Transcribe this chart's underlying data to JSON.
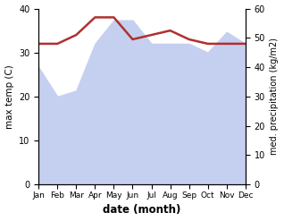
{
  "months": [
    "Jan",
    "Feb",
    "Mar",
    "Apr",
    "May",
    "Jun",
    "Jul",
    "Aug",
    "Sep",
    "Oct",
    "Nov",
    "Dec"
  ],
  "temperature": [
    32,
    32,
    34,
    38,
    38,
    33,
    34,
    35,
    33,
    32,
    32,
    32
  ],
  "precipitation": [
    40,
    30,
    32,
    48,
    56,
    56,
    48,
    48,
    48,
    45,
    52,
    48
  ],
  "temp_color": "#b03030",
  "precip_fill_color": "#c5d0f0",
  "xlabel": "date (month)",
  "ylabel_left": "max temp (C)",
  "ylabel_right": "med. precipitation (kg/m2)",
  "ylim_left": [
    0,
    40
  ],
  "ylim_right": [
    0,
    60
  ],
  "yticks_left": [
    0,
    10,
    20,
    30,
    40
  ],
  "yticks_right": [
    0,
    10,
    20,
    30,
    40,
    50,
    60
  ]
}
